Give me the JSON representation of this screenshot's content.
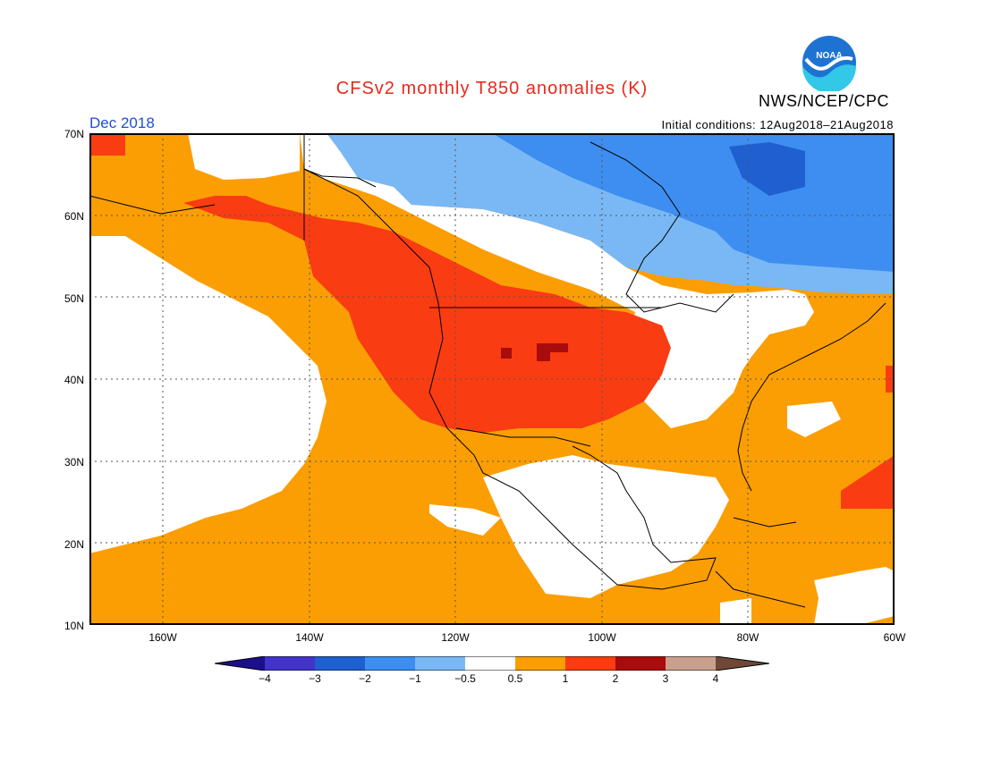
{
  "title": "CFSv2 monthly T850 anomalies (K)",
  "agency": "NWS/NCEP/CPC",
  "logo_text": "NOAA",
  "period": "Dec 2018",
  "initial_conditions": "Initial conditions: 12Aug2018–21Aug2018",
  "lat_labels": [
    "70N",
    "60N",
    "50N",
    "40N",
    "30N",
    "20N",
    "10N"
  ],
  "lon_labels": [
    "160W",
    "140W",
    "120W",
    "100W",
    "80W",
    "60W"
  ],
  "colorbar": {
    "labels": [
      "−4",
      "−3",
      "−2",
      "−1",
      "−0.5",
      "0.5",
      "1",
      "2",
      "3",
      "4"
    ],
    "colors": [
      "#1b0f8c",
      "#4234c8",
      "#1f5fd0",
      "#3d8ef0",
      "#7ab8f5",
      "#ffffff",
      "#fa9e04",
      "#fa3c12",
      "#a80c0c",
      "#c9a08e",
      "#704838"
    ]
  },
  "map_data": {
    "domain": {
      "lon": [
        -170,
        -60
      ],
      "lat": [
        10,
        70
      ]
    },
    "fields": [
      {
        "category": "0.5 to 1",
        "color": "#fa9e04"
      },
      {
        "category": "1 to 2",
        "color": "#fa3c12"
      },
      {
        "category": "2 to 3",
        "color": "#a80c0c"
      },
      {
        "category": "-0.5 to 0.5",
        "color": "#ffffff"
      },
      {
        "category": "-1 to -0.5",
        "color": "#7ab8f5"
      },
      {
        "category": "-2 to -1",
        "color": "#3d8ef0"
      },
      {
        "category": "-3 to -2",
        "color": "#1f5fd0"
      }
    ]
  }
}
